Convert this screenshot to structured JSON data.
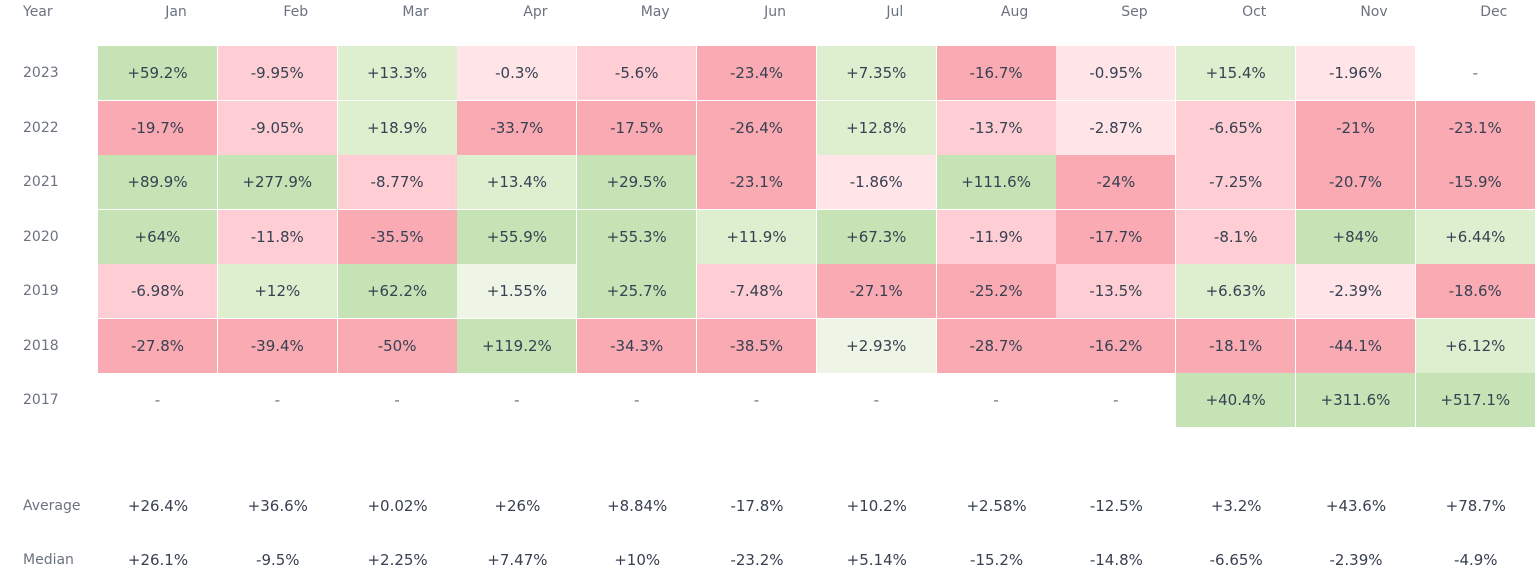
{
  "chart_data": {
    "type": "heatmap",
    "title": "",
    "row_header": "Year",
    "columns": [
      "Jan",
      "Feb",
      "Mar",
      "Apr",
      "May",
      "Jun",
      "Jul",
      "Aug",
      "Sep",
      "Oct",
      "Nov",
      "Dec"
    ],
    "rows": [
      {
        "year": "2023",
        "cells": [
          "+59.2%",
          "-9.95%",
          "+13.3%",
          "-0.3%",
          "-5.6%",
          "-23.4%",
          "+7.35%",
          "-16.7%",
          "-0.95%",
          "+15.4%",
          "-1.96%",
          "-"
        ],
        "values": [
          59.2,
          -9.95,
          13.3,
          -0.3,
          -5.6,
          -23.4,
          7.35,
          -16.7,
          -0.95,
          15.4,
          -1.96,
          null
        ]
      },
      {
        "year": "2022",
        "cells": [
          "-19.7%",
          "-9.05%",
          "+18.9%",
          "-33.7%",
          "-17.5%",
          "-26.4%",
          "+12.8%",
          "-13.7%",
          "-2.87%",
          "-6.65%",
          "-21%",
          "-23.1%"
        ],
        "values": [
          -19.7,
          -9.05,
          18.9,
          -33.7,
          -17.5,
          -26.4,
          12.8,
          -13.7,
          -2.87,
          -6.65,
          -21,
          -23.1
        ]
      },
      {
        "year": "2021",
        "cells": [
          "+89.9%",
          "+277.9%",
          "-8.77%",
          "+13.4%",
          "+29.5%",
          "-23.1%",
          "-1.86%",
          "+111.6%",
          "-24%",
          "-7.25%",
          "-20.7%",
          "-15.9%"
        ],
        "values": [
          89.9,
          277.9,
          -8.77,
          13.4,
          29.5,
          -23.1,
          -1.86,
          111.6,
          -24,
          -7.25,
          -20.7,
          -15.9
        ]
      },
      {
        "year": "2020",
        "cells": [
          "+64%",
          "-11.8%",
          "-35.5%",
          "+55.9%",
          "+55.3%",
          "+11.9%",
          "+67.3%",
          "-11.9%",
          "-17.7%",
          "-8.1%",
          "+84%",
          "+6.44%"
        ],
        "values": [
          64,
          -11.8,
          -35.5,
          55.9,
          55.3,
          11.9,
          67.3,
          -11.9,
          -17.7,
          -8.1,
          84,
          6.44
        ]
      },
      {
        "year": "2019",
        "cells": [
          "-6.98%",
          "+12%",
          "+62.2%",
          "+1.55%",
          "+25.7%",
          "-7.48%",
          "-27.1%",
          "-25.2%",
          "-13.5%",
          "+6.63%",
          "-2.39%",
          "-18.6%"
        ],
        "values": [
          -6.98,
          12,
          62.2,
          1.55,
          25.7,
          -7.48,
          -27.1,
          -25.2,
          -13.5,
          6.63,
          -2.39,
          -18.6
        ]
      },
      {
        "year": "2018",
        "cells": [
          "-27.8%",
          "-39.4%",
          "-50%",
          "+119.2%",
          "-34.3%",
          "-38.5%",
          "+2.93%",
          "-28.7%",
          "-16.2%",
          "-18.1%",
          "-44.1%",
          "+6.12%"
        ],
        "values": [
          -27.8,
          -39.4,
          -50,
          119.2,
          -34.3,
          -38.5,
          2.93,
          -28.7,
          -16.2,
          -18.1,
          -44.1,
          6.12
        ]
      },
      {
        "year": "2017",
        "cells": [
          "-",
          "-",
          "-",
          "-",
          "-",
          "-",
          "-",
          "-",
          "-",
          "+40.4%",
          "+311.6%",
          "+517.1%"
        ],
        "values": [
          null,
          null,
          null,
          null,
          null,
          null,
          null,
          null,
          null,
          40.4,
          311.6,
          517.1
        ]
      }
    ],
    "summary": [
      {
        "label": "Average",
        "cells": [
          "+26.4%",
          "+36.6%",
          "+0.02%",
          "+26%",
          "+8.84%",
          "-17.8%",
          "+10.2%",
          "+2.58%",
          "-12.5%",
          "+3.2%",
          "+43.6%",
          "+78.7%"
        ]
      },
      {
        "label": "Median",
        "cells": [
          "+26.1%",
          "-9.5%",
          "+2.25%",
          "+7.47%",
          "+10%",
          "-23.2%",
          "+5.14%",
          "-15.2%",
          "-14.8%",
          "-6.65%",
          "-2.39%",
          "-4.9%"
        ]
      }
    ]
  },
  "colors": {
    "pos_light": "#eef5e7",
    "pos_mid": "#deefd0",
    "pos_strong": "#c5e3b4",
    "neg_light": "#ffe4e8",
    "neg_mid": "#ffcdd4",
    "neg_strong": "#f9aab3",
    "neutral": "#ffffff"
  }
}
